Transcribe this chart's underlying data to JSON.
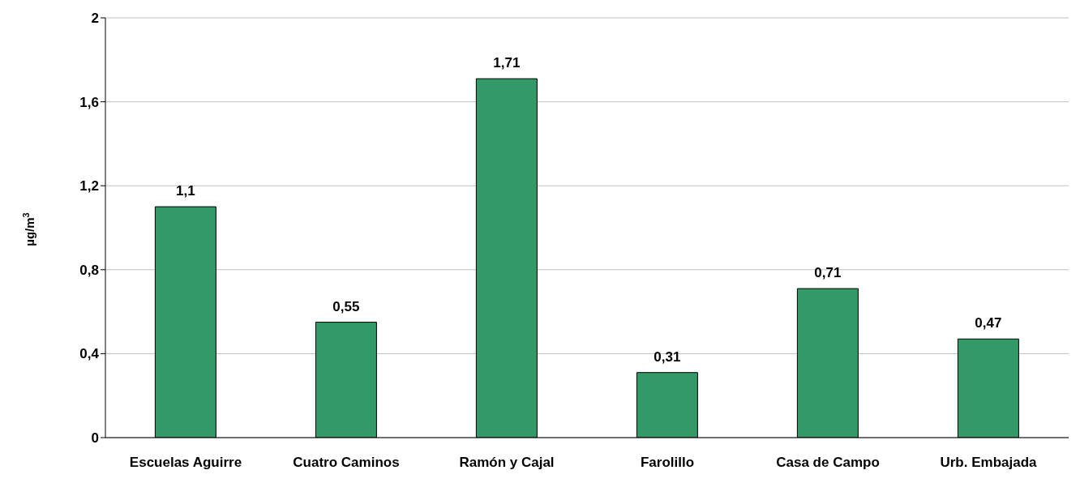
{
  "chart_data": {
    "type": "bar",
    "ylabel": "µg/m$^{3}$",
    "categories": [
      "Escuelas Aguirre",
      "Cuatro Caminos",
      "Ramón y Cajal",
      "Farolillo",
      "Casa de Campo",
      "Urb. Embajada"
    ],
    "values": [
      1.1,
      0.55,
      1.71,
      0.31,
      0.71,
      0.47
    ],
    "value_labels": [
      "1,1",
      "0,55",
      "1,71",
      "0,31",
      "0,71",
      "0,47"
    ],
    "color": "#339966",
    "ylim": [
      0,
      2
    ],
    "yticks": [
      0,
      {
        "value": 0.4,
        "label": "0,4"
      },
      {
        "value": 0.8,
        "label": "0,8"
      },
      {
        "value": 1.2,
        "label": "1,2"
      },
      {
        "value": 1.6,
        "label": "1,6"
      },
      2
    ],
    "grid": "y",
    "legend": false
  }
}
